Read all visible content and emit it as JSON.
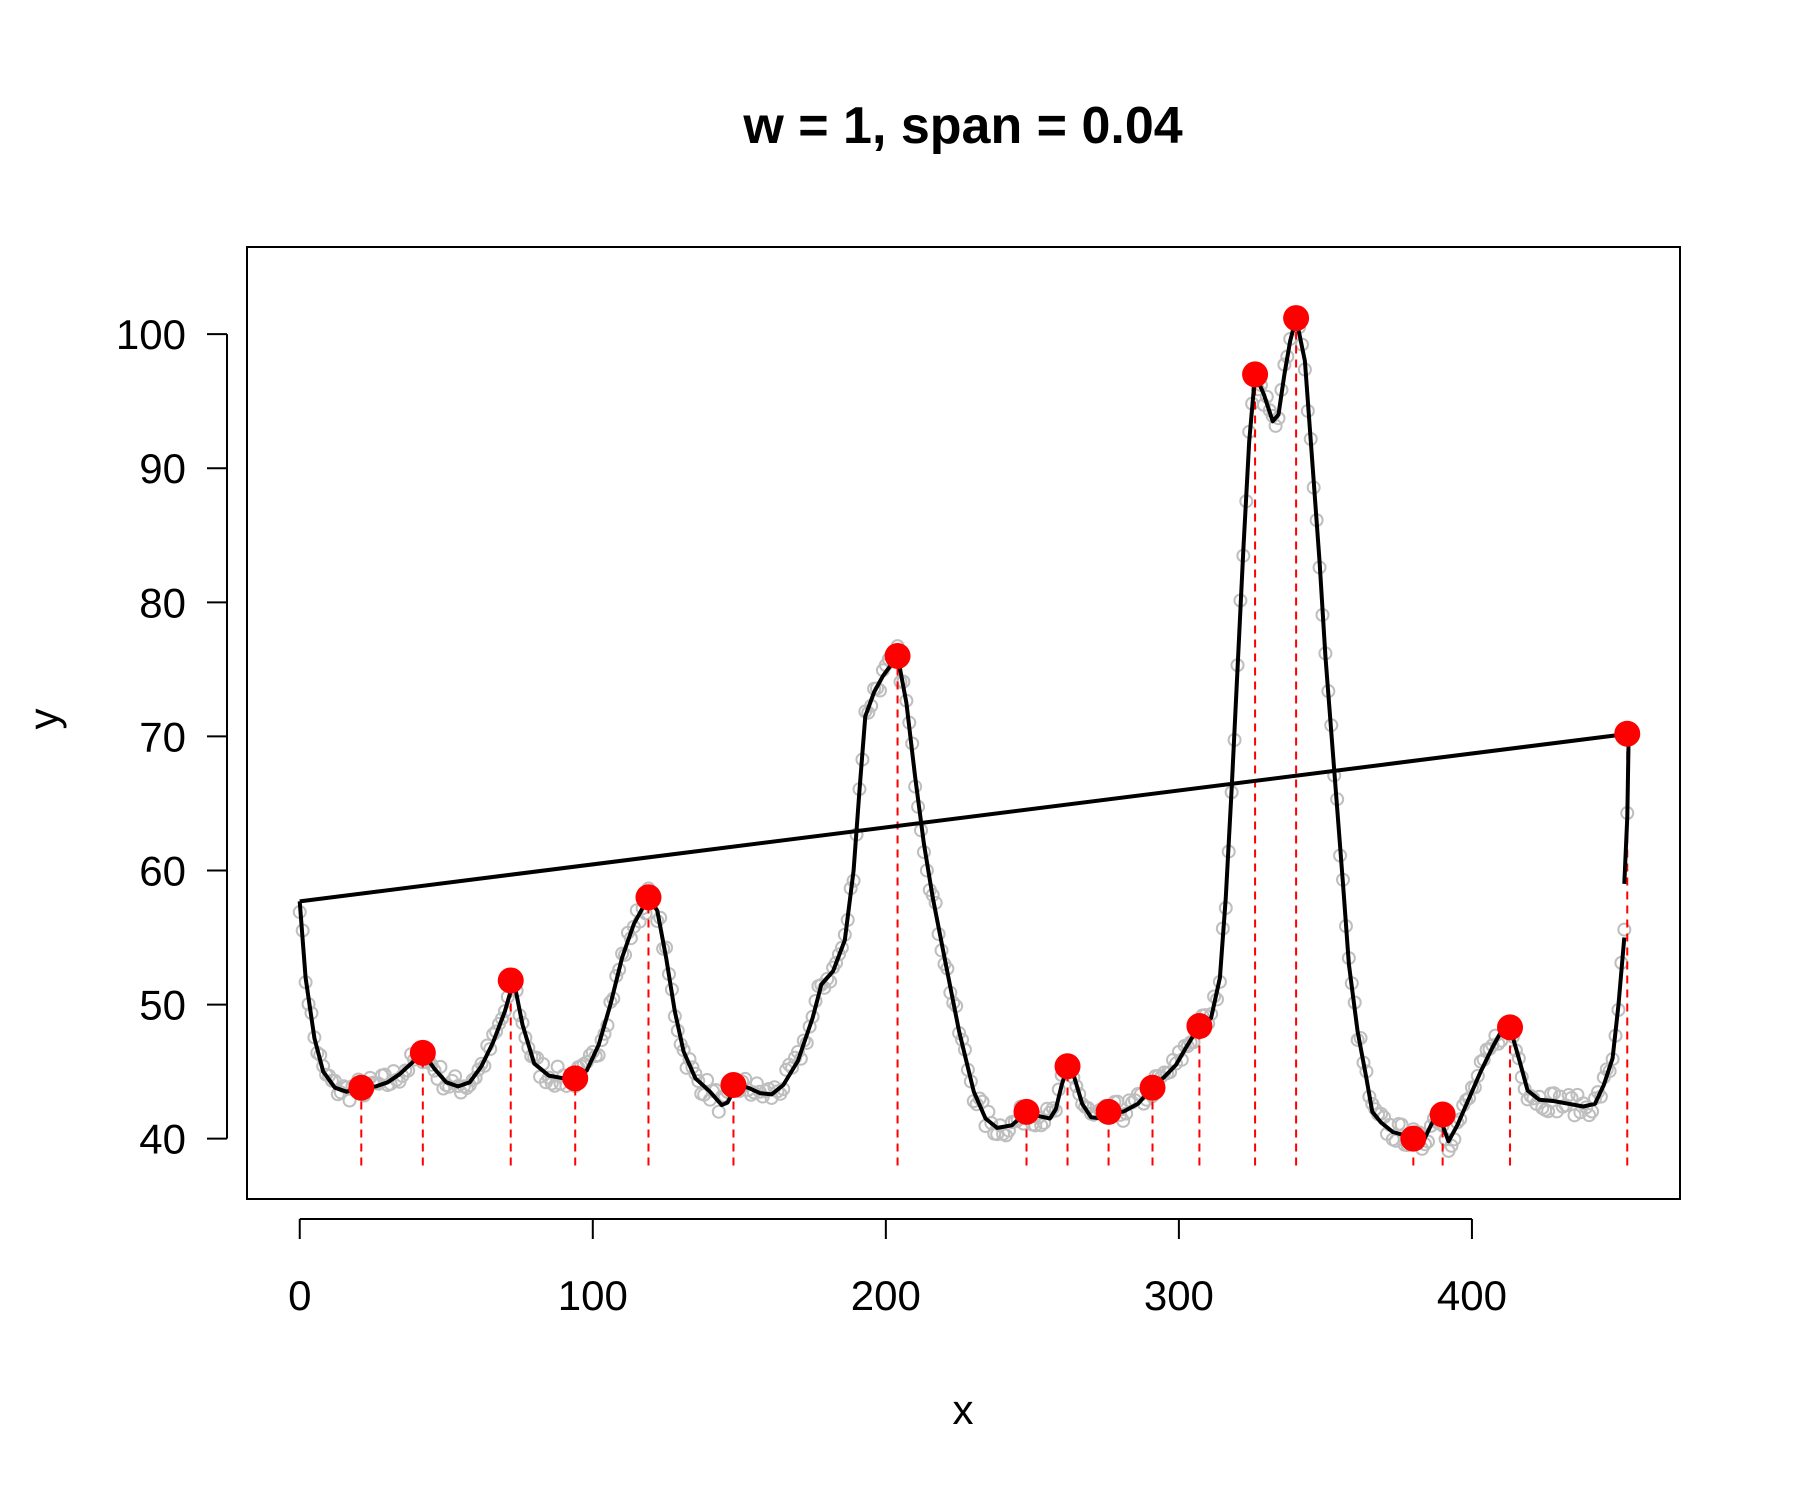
{
  "chart_data": {
    "type": "scatter",
    "title": "w = 1, span = 0.04",
    "xlabel": "x",
    "ylabel": "y",
    "xlim": [
      -18,
      471
    ],
    "ylim": [
      35.5,
      106.5
    ],
    "xticks": [
      0,
      100,
      200,
      300,
      400
    ],
    "yticks": [
      40,
      50,
      60,
      70,
      80,
      90,
      100
    ],
    "colors": {
      "raw": "#bebebe",
      "smooth": "#000000",
      "peak": "#ff0000",
      "dashed": "#ff0000"
    },
    "dashed_line_bottom": 38,
    "smooth_curve": [
      [
        0,
        57.7
      ],
      [
        2,
        52.0
      ],
      [
        5,
        47.5
      ],
      [
        8,
        45.0
      ],
      [
        12,
        43.8
      ],
      [
        16,
        43.5
      ],
      [
        21,
        43.8
      ],
      [
        26,
        43.9
      ],
      [
        30,
        44.2
      ],
      [
        34,
        44.8
      ],
      [
        38,
        45.6
      ],
      [
        42,
        46.4
      ],
      [
        46,
        45.2
      ],
      [
        50,
        44.2
      ],
      [
        54,
        43.9
      ],
      [
        58,
        44.2
      ],
      [
        62,
        45.4
      ],
      [
        66,
        47.2
      ],
      [
        70,
        49.5
      ],
      [
        73,
        51.8
      ],
      [
        76,
        48.5
      ],
      [
        80,
        45.6
      ],
      [
        85,
        44.7
      ],
      [
        90,
        44.5
      ],
      [
        94,
        44.5
      ],
      [
        98,
        45.1
      ],
      [
        102,
        47.0
      ],
      [
        106,
        50.0
      ],
      [
        110,
        53.5
      ],
      [
        114,
        56.0
      ],
      [
        119,
        58.0
      ],
      [
        122,
        57.0
      ],
      [
        125,
        53.5
      ],
      [
        128,
        49.5
      ],
      [
        131,
        46.5
      ],
      [
        135,
        44.5
      ],
      [
        140,
        43.5
      ],
      [
        144,
        42.5
      ],
      [
        146,
        42.7
      ],
      [
        149,
        44.0
      ],
      [
        153,
        43.8
      ],
      [
        157,
        43.4
      ],
      [
        161,
        43.3
      ],
      [
        165,
        44.0
      ],
      [
        170,
        45.8
      ],
      [
        175,
        49.0
      ],
      [
        178,
        51.5
      ],
      [
        182,
        52.5
      ],
      [
        186,
        54.8
      ],
      [
        189,
        60.0
      ],
      [
        191,
        66.0
      ],
      [
        193,
        71.5
      ],
      [
        196,
        73.3
      ],
      [
        199,
        74.5
      ],
      [
        202,
        75.4
      ],
      [
        204,
        76.0
      ],
      [
        207,
        72.5
      ],
      [
        210,
        67.0
      ],
      [
        213,
        62.0
      ],
      [
        216,
        58.0
      ],
      [
        220,
        53.5
      ],
      [
        225,
        48.0
      ],
      [
        230,
        43.5
      ],
      [
        234,
        41.5
      ],
      [
        238,
        40.8
      ],
      [
        243,
        41.0
      ],
      [
        248,
        42.0
      ],
      [
        252,
        41.7
      ],
      [
        256,
        41.5
      ],
      [
        258,
        42.2
      ],
      [
        260,
        44.0
      ],
      [
        262,
        45.4
      ],
      [
        264,
        44.8
      ],
      [
        267,
        42.6
      ],
      [
        270,
        41.6
      ],
      [
        274,
        41.5
      ],
      [
        277,
        42.0
      ],
      [
        281,
        42.0
      ],
      [
        286,
        42.6
      ],
      [
        291,
        43.8
      ],
      [
        295,
        44.6
      ],
      [
        299,
        45.5
      ],
      [
        303,
        47.0
      ],
      [
        307,
        48.4
      ],
      [
        311,
        49.0
      ],
      [
        314,
        52.0
      ],
      [
        316,
        58.0
      ],
      [
        318,
        66.0
      ],
      [
        320,
        75.0
      ],
      [
        322,
        84.0
      ],
      [
        324,
        92.0
      ],
      [
        326,
        97.0
      ],
      [
        329,
        95.5
      ],
      [
        332,
        93.5
      ],
      [
        334,
        94.0
      ],
      [
        336,
        97.0
      ],
      [
        338,
        99.5
      ],
      [
        340,
        101.2
      ],
      [
        343,
        98.0
      ],
      [
        345,
        92.0
      ],
      [
        348,
        83.0
      ],
      [
        350,
        76.0
      ],
      [
        353,
        67.5
      ],
      [
        356,
        59.0
      ],
      [
        358,
        53.0
      ],
      [
        361,
        48.0
      ],
      [
        364,
        44.5
      ],
      [
        366,
        42.0
      ],
      [
        369,
        41.2
      ],
      [
        373,
        40.5
      ],
      [
        378,
        40.2
      ],
      [
        380,
        40.0
      ],
      [
        383,
        39.6
      ],
      [
        386,
        41.0
      ],
      [
        388,
        41.8
      ],
      [
        390,
        41.0
      ],
      [
        392,
        39.8
      ],
      [
        395,
        41.0
      ],
      [
        399,
        43.0
      ],
      [
        403,
        45.0
      ],
      [
        407,
        46.8
      ],
      [
        410,
        48.0
      ],
      [
        413,
        48.3
      ],
      [
        416,
        46.0
      ],
      [
        419,
        43.6
      ],
      [
        423,
        42.9
      ],
      [
        428,
        42.8
      ],
      [
        433,
        42.6
      ],
      [
        438,
        42.4
      ],
      [
        442,
        42.6
      ],
      [
        445,
        44.0
      ],
      [
        448,
        46.0
      ],
      [
        450,
        50.0
      ],
      [
        452,
        55.0
      ]
    ],
    "smooth_tail": [
      [
        452,
        59.0
      ],
      [
        453,
        64.0
      ],
      [
        453.5,
        70.2
      ]
    ],
    "trend_line": [
      [
        0,
        57.7
      ],
      [
        453.5,
        70.2
      ]
    ],
    "peaks": [
      [
        21,
        43.8
      ],
      [
        42,
        46.4
      ],
      [
        72,
        51.8
      ],
      [
        94,
        44.5
      ],
      [
        119,
        58.0
      ],
      [
        148,
        44.0
      ],
      [
        204,
        76.0
      ],
      [
        248,
        42.0
      ],
      [
        262,
        45.4
      ],
      [
        276,
        42.0
      ],
      [
        291,
        43.8
      ],
      [
        307,
        48.4
      ],
      [
        326,
        97.0
      ],
      [
        340,
        101.2
      ],
      [
        380,
        40.0
      ],
      [
        390,
        41.8
      ],
      [
        413,
        48.3
      ],
      [
        453,
        70.2
      ]
    ]
  }
}
